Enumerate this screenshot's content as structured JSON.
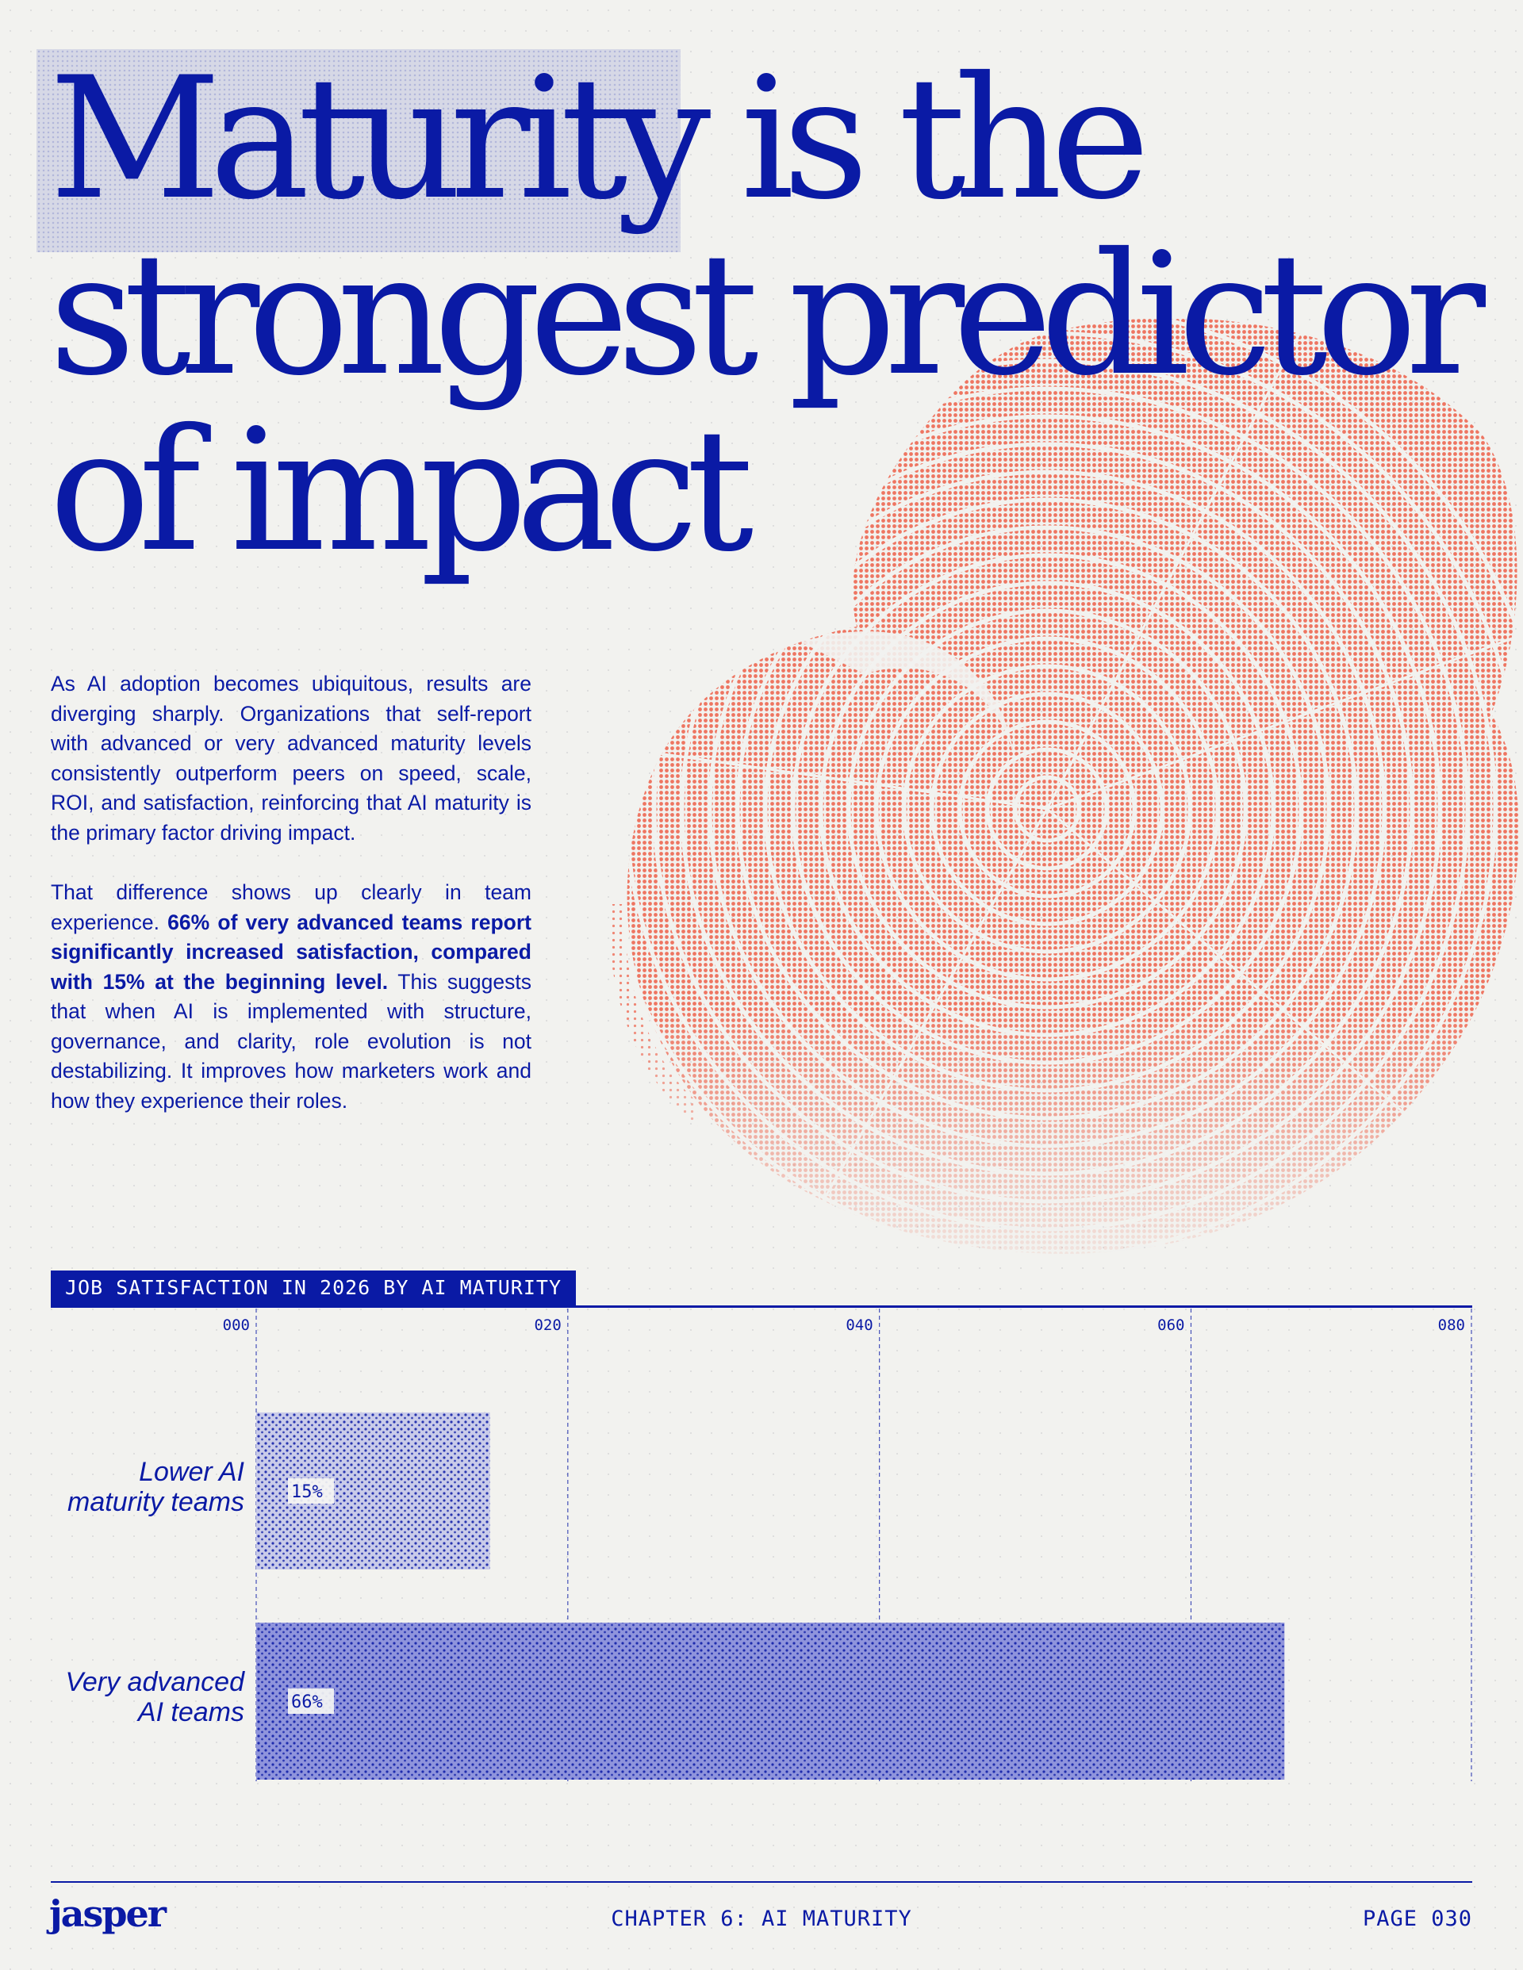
{
  "headline": {
    "line1_highlight": "Maturity",
    "line1_rest": " is the",
    "line2": "strongest predictor",
    "line3": "of impact"
  },
  "body": {
    "paragraph1": "As AI adoption becomes ubiquitous, results are diverging sharply. Organizations that self-report with advanced or very advanced maturity levels consistently outperform peers on speed, scale, ROI, and satisfaction, reinforcing that AI maturity is the primary factor driving impact.",
    "paragraph2_start": "That difference shows up clearly in team experience. ",
    "paragraph2_bold": "66% of very advanced teams report significantly increased satisfaction, compared with 15% at the beginning level.",
    "paragraph2_end": " This suggests that when AI is implemented with structure, governance, and clarity, role evolution is not destabilizing. It improves how marketers work and how they experience their roles."
  },
  "chart_data": {
    "type": "bar",
    "orientation": "horizontal",
    "title": "JOB SATISFACTION IN 2026 BY AI MATURITY",
    "categories": [
      "Lower AI maturity teams",
      "Very advanced AI teams"
    ],
    "category_lines": [
      [
        "Lower AI",
        "maturity teams"
      ],
      [
        "Very advanced",
        "AI teams"
      ]
    ],
    "values": [
      15,
      66
    ],
    "value_labels": [
      "15%",
      "66%"
    ],
    "x_ticks": [
      0,
      20,
      40,
      60,
      80
    ],
    "x_tick_labels": [
      "000",
      "020",
      "040",
      "060",
      "080"
    ],
    "xlim": [
      0,
      78
    ],
    "grid": true,
    "bar_colors": [
      "#c9cbe9",
      "#8f94dc"
    ]
  },
  "footer": {
    "logo": "jasper",
    "chapter": "CHAPTER 6: AI MATURITY",
    "page": "PAGE 030"
  },
  "colors": {
    "primary": "#0a1aa5",
    "accent": "#ee6a55",
    "background": "#f2f2ef"
  }
}
